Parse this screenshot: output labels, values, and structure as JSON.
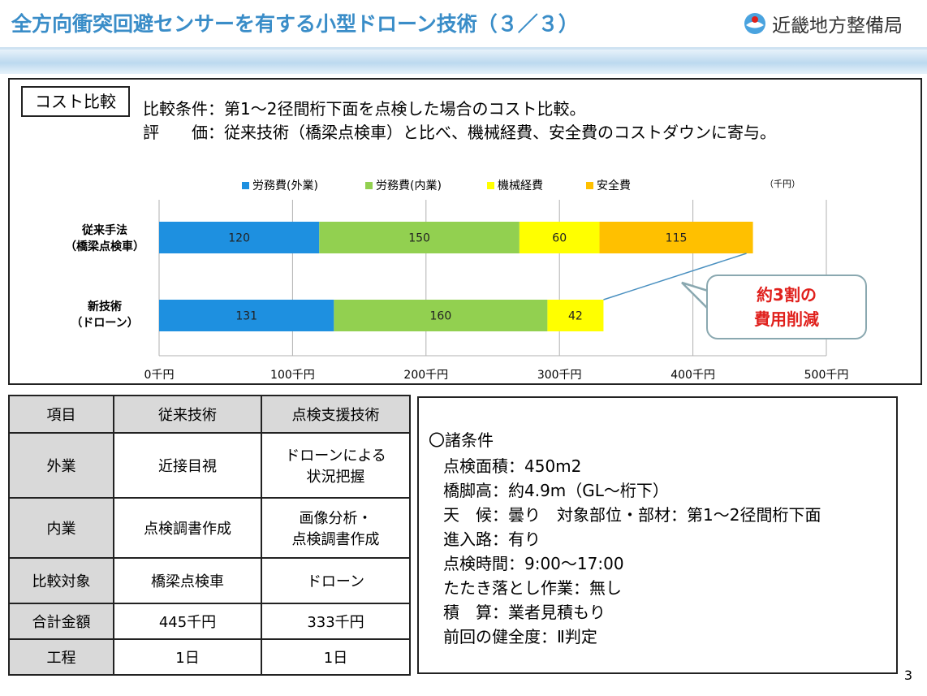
{
  "header": {
    "title": "全方向衝突回避センサーを有する小型ドローン技術（３／３）",
    "organization": "近畿地方整備局"
  },
  "cost_section": {
    "label": "コスト比較",
    "condition_line": "比較条件：第1〜2径間桁下面を点検した場合のコスト比較。",
    "evaluation_line": "評　　価：従来技術（橋梁点検車）と比べ、機械経費、安全費のコストダウンに寄与。"
  },
  "chart_data": {
    "type": "bar",
    "orientation": "horizontal",
    "stacked": true,
    "unit_label": "（千円）",
    "categories": [
      {
        "line1": "従来手法",
        "line2": "（橋梁点検車）"
      },
      {
        "line1": "新技術",
        "line2": "（ドローン）"
      }
    ],
    "series": [
      {
        "name": "労務費(外業)",
        "color": "#1e90e0",
        "values": [
          120,
          131
        ]
      },
      {
        "name": "労務費(内業)",
        "color": "#92d050",
        "values": [
          150,
          160
        ]
      },
      {
        "name": "機械経費",
        "color": "#ffff00",
        "values": [
          60,
          42
        ]
      },
      {
        "name": "安全費",
        "color": "#ffc000",
        "values": [
          115,
          0
        ]
      }
    ],
    "xlim": [
      0,
      500
    ],
    "ticks": [
      "0千円",
      "100千円",
      "200千円",
      "300千円",
      "400千円",
      "500千円"
    ],
    "tick_values": [
      0,
      100,
      200,
      300,
      400,
      500
    ],
    "grid": true,
    "legend_position": "top",
    "annotation": {
      "line1": "約3割の",
      "line2": "費用削減"
    }
  },
  "table": {
    "headers": [
      "項目",
      "従来技術",
      "点検支援技術"
    ],
    "rows": [
      {
        "item": "外業",
        "conv": "近接目視",
        "new1": "ドローンによる",
        "new2": "状況把握"
      },
      {
        "item": "内業",
        "conv": "点検調書作成",
        "new1": "画像分析・",
        "new2": "点検調書作成"
      },
      {
        "item": "比較対象",
        "conv": "橋梁点検車",
        "new1": "ドローン",
        "new2": ""
      },
      {
        "item": "合計金額",
        "conv": "445千円",
        "new1": "333千円",
        "new2": ""
      },
      {
        "item": "工程",
        "conv": "1日",
        "new1": "1日",
        "new2": ""
      }
    ]
  },
  "conditions": {
    "heading": "〇諸条件",
    "items": [
      "点検面積：450m2",
      "橋脚高：約4.9m（GL〜桁下）",
      "天　候：曇り　対象部位・部材：第1〜2径間桁下面",
      "進入路：有り",
      "点検時間：9:00〜17:00",
      "たたき落とし作業：無し",
      "積　算：業者見積もり",
      "前回の健全度：Ⅱ判定"
    ]
  },
  "page_number": "3"
}
